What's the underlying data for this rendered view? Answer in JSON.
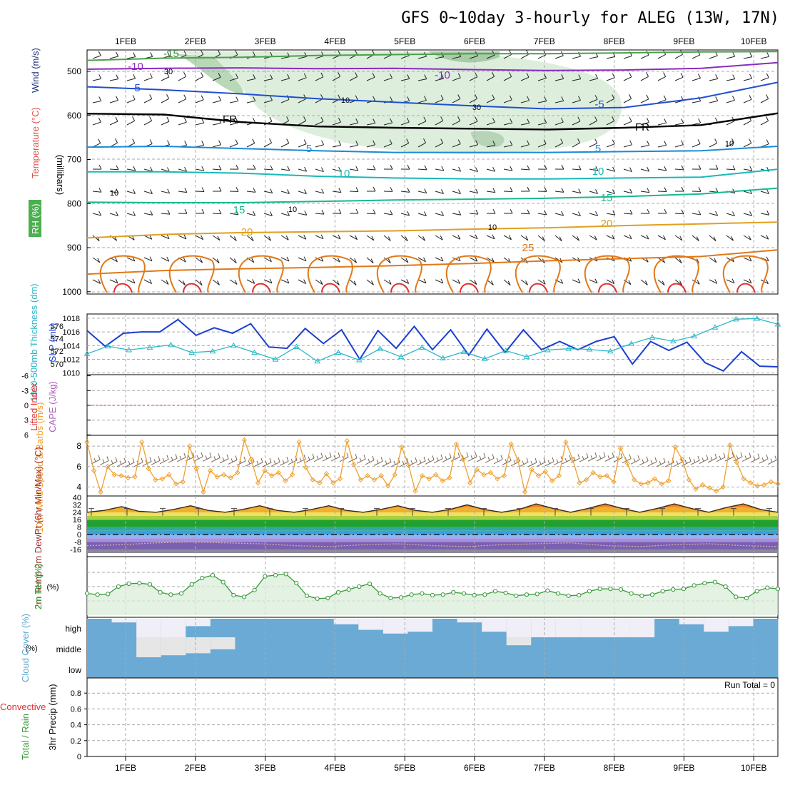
{
  "title": "GFS 0~10day 3-hourly for ALEG (13W, 17N)",
  "colors": {
    "grid": "#aaaaaa",
    "rh_fill": "#d9ecd9",
    "rh_line": "#3a9a3a",
    "slp_line": "#1a3fd0",
    "thickness_line": "#2ab8c8",
    "lifted_zero": "#e03030",
    "wind10m": "#f0a030",
    "barbs": "#7a6a5a",
    "cloud": "#6aaad4",
    "cloud_clear": "#f0eef6",
    "precip_label": "#e03030"
  },
  "chart_data": [
    {
      "type": "line",
      "panel": "upper-air",
      "title": "",
      "x": [
        "1FEB",
        "2FEB",
        "3FEB",
        "4FEB",
        "5FEB",
        "6FEB",
        "7FEB",
        "8FEB",
        "9FEB",
        "10FEB"
      ],
      "ylabel": "(millibars)",
      "ylabel_parts": [
        "RH (%)",
        "Temperature (°C)",
        "Wind (m/s)"
      ],
      "yticks": [
        "500",
        "600",
        "700",
        "800",
        "900",
        "1000"
      ],
      "ylim": [
        450,
        1000
      ],
      "isotherms": [
        {
          "label": "-15",
          "color": "#4aa04a",
          "values": [
            475,
            470,
            468,
            464,
            462,
            460,
            460,
            458,
            456,
            455
          ]
        },
        {
          "label": "-10",
          "color": "#8a2bc0",
          "values": [
            495,
            493,
            492,
            494,
            493,
            496,
            498,
            497,
            493,
            480
          ]
        },
        {
          "label": "-5",
          "color": "#1f4fd0",
          "values": [
            535,
            542,
            551,
            562,
            570,
            578,
            585,
            582,
            560,
            525
          ]
        },
        {
          "label": "FR",
          "color": "#000000",
          "values": [
            596,
            598,
            615,
            625,
            628,
            630,
            632,
            628,
            622,
            595
          ]
        },
        {
          "label": "5",
          "color": "#1a8ad8",
          "values": [
            672,
            670,
            675,
            680,
            684,
            684,
            684,
            682,
            680,
            670
          ]
        },
        {
          "label": "10",
          "color": "#1ab8b8",
          "values": [
            728,
            728,
            731,
            738,
            742,
            744,
            744,
            742,
            740,
            722
          ]
        },
        {
          "label": "15",
          "color": "#18b890",
          "values": [
            797,
            798,
            798,
            795,
            792,
            790,
            788,
            784,
            778,
            765
          ]
        },
        {
          "label": "20",
          "color": "#e0a020",
          "values": [
            878,
            870,
            866,
            864,
            862,
            858,
            855,
            850,
            846,
            842
          ]
        },
        {
          "label": "25",
          "color": "#e07818",
          "values": [
            960,
            952,
            948,
            945,
            941,
            936,
            930,
            925,
            920,
            905
          ]
        }
      ],
      "contour_labels": [
        "-15",
        "-10",
        "-10",
        "-5",
        "-5",
        "FR",
        "FR",
        "5",
        "5",
        "10",
        "10",
        "15",
        "15",
        "20",
        "20",
        "25",
        "10",
        "10",
        "10",
        "30",
        "30",
        "10",
        "10"
      ]
    },
    {
      "type": "line",
      "panel": "slp-thickness",
      "left_ylabel": "1000-500mb Thickness (dm)",
      "right_ylabel": "SLP (mb)",
      "left_yticks": [
        "576",
        "574",
        "572",
        "570"
      ],
      "right_yticks": [
        "1018",
        "1016",
        "1014",
        "1012",
        "1010"
      ],
      "series": [
        {
          "name": "SLP (mb)",
          "values": [
            1016.2,
            1013.9,
            1015.8,
            1016,
            1016,
            1017.8,
            1015.5,
            1016.6,
            1015.8,
            1017.2,
            1013.8,
            1013.6,
            1016.5,
            1014.3,
            1016.3,
            1012,
            1016.2,
            1013.6,
            1016.8,
            1013.4,
            1016.3,
            1012.6,
            1016.4,
            1013,
            1016.3,
            1013.4,
            1014.6,
            1013.4,
            1014.6,
            1015.3,
            1011.3,
            1014.6,
            1013.3,
            1014.5,
            1011.5,
            1010.3,
            1013.1,
            1011,
            1010.9
          ]
        },
        {
          "name": "1000-500mb Thickness (dm)",
          "values": [
            571.6,
            572.8,
            572.2,
            572.6,
            573,
            571.8,
            572,
            572.9,
            571.8,
            570.7,
            572.7,
            570.4,
            571.8,
            570.6,
            572.4,
            571.1,
            572.6,
            570.9,
            571.9,
            570.8,
            572.1,
            571.1,
            572.2,
            572.4,
            572.3,
            572,
            573.2,
            574.2,
            573.6,
            574.4,
            575.8,
            577.1,
            577.2,
            576.3
          ]
        }
      ]
    },
    {
      "type": "line",
      "panel": "lifted-index-cape",
      "left_ylabel": "Lifted Index",
      "right_ylabel": "CAPE (J/kg)",
      "yticks": [
        "-6",
        "-3",
        "0",
        "3",
        "6"
      ],
      "ylim": [
        -6,
        6
      ],
      "series": [
        {
          "name": "Lifted Index",
          "values": [
            0,
            0,
            0,
            0,
            0,
            0,
            0,
            0,
            0,
            0
          ]
        }
      ]
    },
    {
      "type": "line",
      "panel": "10m-wind",
      "ylabel": "10m Wind Speed & Barbs (m/s)",
      "yticks": [
        "8",
        "6",
        "4"
      ],
      "ylim": [
        3,
        9
      ],
      "series": [
        {
          "name": "10m Wind Speed",
          "values": [
            8.4,
            5.6,
            3.5,
            6,
            5.2,
            5.1,
            4.9,
            5,
            8.4,
            5.8,
            4.7,
            4.8,
            5.2,
            4.3,
            4.5,
            8,
            5.8,
            3.5,
            5.6,
            5,
            5.2,
            4.9,
            5.4,
            8.6,
            6.7,
            4.4,
            5.6,
            5.1,
            5.4,
            4.6,
            5.2,
            8.4,
            5.9,
            4.7,
            4.4,
            5.3,
            4.4,
            4.8,
            8.5,
            6.2,
            4.7,
            5.1,
            4.7,
            5.1,
            4.1,
            5.2,
            7.9,
            6.1,
            3.6,
            5.1,
            4.8,
            5.2,
            4.6,
            4.9,
            8.2,
            6.7,
            4.4,
            5.7,
            5.2,
            5.4,
            4.8,
            5.1,
            8.2,
            6.6,
            3.5,
            5.7,
            5.1,
            5.5,
            4.6,
            5.1,
            8.4,
            6.7,
            4.4,
            4.7,
            5.4,
            5,
            5.1,
            4.5,
            7.8,
            6.3,
            4.7,
            4.3,
            4.4,
            4.8,
            4.3,
            4.6,
            7.9,
            6.7,
            4.7,
            3.8,
            4.2,
            3.9,
            3.6,
            4,
            8.1,
            6.4,
            4.8,
            4.4,
            4.1,
            4.2,
            4.5,
            4.3
          ]
        }
      ]
    },
    {
      "type": "area",
      "panel": "2m-temp",
      "ylabel": "2m Temp 2m DewPt (6hr Min/Max) (°C)",
      "yticks": [
        "40",
        "32",
        "24",
        "16",
        "8",
        "0",
        "-8",
        "-16"
      ],
      "ylim": [
        -20,
        40
      ],
      "series": [
        {
          "name": "2m Temp",
          "values": [
            24,
            26,
            30,
            25,
            24,
            27,
            31,
            26,
            24,
            27,
            31,
            26,
            24,
            27,
            31,
            26,
            24,
            27,
            31,
            26,
            24,
            27,
            32,
            27,
            24,
            27,
            33,
            28,
            24,
            28,
            33,
            28,
            24,
            28,
            33,
            28,
            24,
            29,
            33,
            27,
            24
          ]
        },
        {
          "name": "2m DewPt",
          "values": [
            -12,
            -11,
            -9,
            -8,
            -9,
            -10,
            -12,
            -13,
            -11,
            -10,
            -12,
            -13,
            -11,
            -10,
            -9,
            -12,
            -13,
            -11,
            -10,
            -12,
            -13
          ]
        }
      ]
    },
    {
      "type": "area",
      "panel": "2m-rh",
      "ylabel": "2m RH (%)",
      "ylim": [
        0,
        100
      ],
      "series": [
        {
          "name": "2m RH",
          "values": [
            38,
            36,
            37,
            50,
            55,
            56,
            54,
            40,
            36,
            38,
            54,
            65,
            70,
            58,
            35,
            32,
            44,
            68,
            70,
            72,
            56,
            34,
            29,
            30,
            40,
            45,
            50,
            55,
            38,
            30,
            31,
            36,
            38,
            35,
            36,
            40,
            38,
            35,
            36,
            42,
            39,
            34,
            36,
            37,
            43,
            38,
            34,
            35,
            42,
            46,
            46,
            45,
            38,
            34,
            36,
            42,
            45,
            46,
            52,
            56,
            58,
            50,
            32,
            30,
            42,
            48,
            46
          ]
        }
      ]
    },
    {
      "type": "heatmap",
      "panel": "cloud-cover",
      "ylabel": "Cloud Cover (%)",
      "rows": [
        "high",
        "middle",
        "low"
      ],
      "x": [
        "1FEB",
        "2FEB",
        "3FEB",
        "4FEB",
        "5FEB",
        "6FEB",
        "7FEB",
        "8FEB",
        "9FEB",
        "10FEB"
      ],
      "values": [
        [
          100,
          80,
          0,
          0,
          60,
          100,
          100,
          100,
          100,
          100,
          70,
          40,
          20,
          30,
          100,
          80,
          30,
          0,
          0,
          0,
          0,
          0,
          0,
          100,
          70,
          30,
          60,
          100
        ],
        [
          100,
          100,
          0,
          10,
          20,
          40,
          100,
          100,
          100,
          100,
          100,
          100,
          100,
          100,
          100,
          100,
          100,
          60,
          100,
          100,
          100,
          100,
          100,
          100,
          100,
          100,
          100,
          100
        ],
        [
          100,
          100,
          100,
          100,
          100,
          100,
          100,
          100,
          100,
          100,
          100,
          100,
          100,
          100,
          100,
          100,
          100,
          100,
          100,
          100,
          100,
          100,
          100,
          100,
          100,
          100,
          100,
          100
        ]
      ]
    },
    {
      "type": "bar",
      "panel": "precip",
      "ylabel": "3hr Precip (mm)",
      "legend": [
        "Total / Rain",
        "Convective"
      ],
      "annotation": "Run Total = 0",
      "yticks": [
        "0.8",
        "0.6",
        "0.4",
        "0.2",
        "0"
      ],
      "ylim": [
        0,
        1
      ],
      "categories": [
        "1FEB",
        "2FEB",
        "3FEB",
        "4FEB",
        "5FEB",
        "6FEB",
        "7FEB",
        "8FEB",
        "9FEB",
        "10FEB"
      ],
      "values": [
        0,
        0,
        0,
        0,
        0,
        0,
        0,
        0,
        0,
        0
      ]
    }
  ]
}
